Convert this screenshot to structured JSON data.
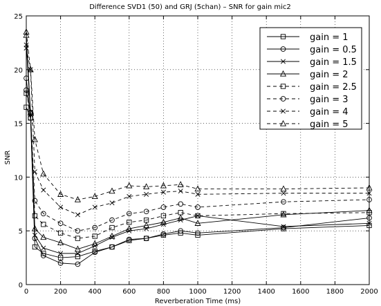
{
  "chart_data": {
    "type": "line",
    "title": "Difference SVD1 (50) and GRJ (5chan) – SNR for gain mic2",
    "xlabel": "Reverberation Time (ms)",
    "ylabel": "SNR",
    "xlim": [
      0,
      2000
    ],
    "ylim": [
      0,
      25
    ],
    "xticks": [
      0,
      200,
      400,
      600,
      800,
      1000,
      1200,
      1400,
      1600,
      1800,
      2000
    ],
    "yticks": [
      0,
      5,
      10,
      15,
      20,
      25
    ],
    "grid": true,
    "legend_position": "top-right",
    "x": [
      0,
      25,
      50,
      100,
      200,
      300,
      400,
      500,
      600,
      700,
      800,
      900,
      1000,
      1500,
      2000
    ],
    "series": [
      {
        "name": "gain = 1",
        "line": "solid",
        "marker": "square",
        "values": [
          16.5,
          15.5,
          3.5,
          2.9,
          2.5,
          2.6,
          3.1,
          3.5,
          4.1,
          4.3,
          4.6,
          4.8,
          4.6,
          5.2,
          5.5
        ]
      },
      {
        "name": "gain = 0.5",
        "line": "solid",
        "marker": "circle",
        "values": [
          19.2,
          15.5,
          4.3,
          2.7,
          2.0,
          1.9,
          3.0,
          3.5,
          4.2,
          4.3,
          4.7,
          5.0,
          4.8,
          5.3,
          6.2
        ]
      },
      {
        "name": "gain = 1.5",
        "line": "solid",
        "marker": "x",
        "values": [
          22.3,
          15.8,
          4.6,
          3.4,
          2.9,
          2.9,
          3.6,
          4.4,
          5.0,
          5.2,
          5.6,
          6.0,
          6.4,
          5.4,
          5.7
        ]
      },
      {
        "name": "gain = 2",
        "line": "solid",
        "marker": "triangle",
        "values": [
          23.2,
          16.0,
          5.2,
          4.4,
          3.9,
          3.3,
          3.8,
          4.5,
          5.2,
          5.5,
          5.8,
          6.2,
          5.7,
          6.5,
          6.9
        ]
      },
      {
        "name": "gain = 2.5",
        "line": "dashed",
        "marker": "square",
        "values": [
          17.8,
          16.0,
          6.4,
          5.6,
          4.8,
          4.3,
          4.5,
          5.3,
          5.8,
          6.0,
          6.4,
          6.7,
          6.4,
          6.6,
          6.7
        ]
      },
      {
        "name": "gain = 3",
        "line": "dashed",
        "marker": "circle",
        "values": [
          18.1,
          16.0,
          7.8,
          6.6,
          5.7,
          5.0,
          5.3,
          6.0,
          6.6,
          6.8,
          7.2,
          7.5,
          7.2,
          7.7,
          7.9
        ]
      },
      {
        "name": "gain = 4",
        "line": "dashed",
        "marker": "x",
        "values": [
          22.0,
          20.0,
          10.5,
          8.8,
          7.2,
          6.5,
          7.2,
          7.6,
          8.2,
          8.4,
          8.6,
          8.7,
          8.4,
          8.5,
          8.5
        ]
      },
      {
        "name": "gain = 5",
        "line": "dashed",
        "marker": "triangle",
        "values": [
          23.5,
          20.0,
          13.5,
          10.3,
          8.4,
          7.9,
          8.2,
          8.7,
          9.2,
          9.1,
          9.2,
          9.3,
          8.9,
          8.9,
          9.0
        ]
      }
    ]
  }
}
